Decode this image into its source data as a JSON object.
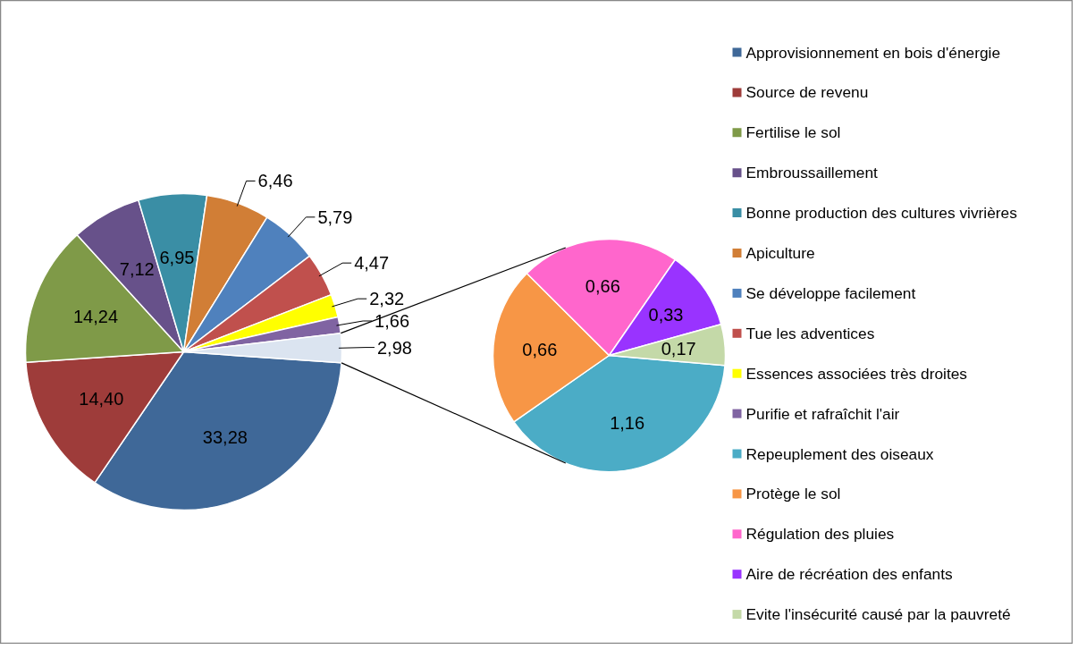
{
  "chart_data": [
    {
      "type": "pie",
      "categories": [
        "Approvisionnement en bois d'énergie",
        "Source de revenu",
        "Fertilise le sol",
        "Embroussaillement",
        "Bonne production des cultures vivrières",
        "Apiculture",
        "Se développe facilement",
        "Tue les adventices",
        "Essences associées très droites",
        "Purifie et rafraîchit l'air",
        null
      ],
      "values": [
        33.28,
        14.4,
        14.24,
        7.12,
        6.95,
        6.46,
        5.79,
        4.47,
        2.32,
        1.66,
        2.98
      ],
      "colors": [
        "#3f6898",
        "#9e3c3a",
        "#7f9a48",
        "#67518a",
        "#3a8ea5",
        "#d17e36",
        "#4f81bd",
        "#c0504d",
        "#ffff00",
        "#8064a2",
        "#dbe4f0"
      ],
      "value_labels": [
        "33,28",
        "14,40",
        "14,24",
        "7,12",
        "6,95",
        "6,46",
        "5,79",
        "4,47",
        "2,32",
        "1,66",
        "2,98"
      ],
      "legend": "right"
    },
    {
      "type": "pie",
      "categories": [
        "Repeuplement des oiseaux",
        "Protège le sol",
        "Régulation des pluies",
        "Aire de récréation des enfants",
        "Evite l'insécurité causé par la pauvreté"
      ],
      "values": [
        1.16,
        0.66,
        0.66,
        0.33,
        0.17
      ],
      "colors": [
        "#4bacc6",
        "#f79646",
        "#ff66cc",
        "#9933ff",
        "#c4d9a8"
      ],
      "value_labels": [
        "1,16",
        "0,66",
        "0,66",
        "0,33",
        "0,17"
      ],
      "legend": "right"
    }
  ]
}
